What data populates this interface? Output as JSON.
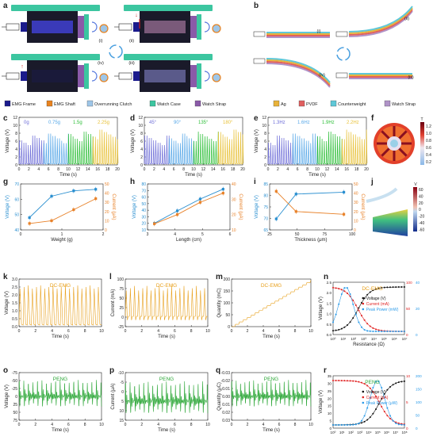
{
  "panel_labels": {
    "a": "a",
    "b": "b",
    "c": "c",
    "d": "d",
    "e": "e",
    "f": "f",
    "g": "g",
    "h": "h",
    "i": "i",
    "j": "j",
    "k": "k",
    "l": "l",
    "m": "m",
    "n": "n",
    "o": "o",
    "p": "p",
    "q": "q",
    "r": "r"
  },
  "state_labels_a": [
    "(i)",
    "(ii)",
    "(iii)",
    "(iv)"
  ],
  "state_labels_b": [
    "(i)",
    "(ii)",
    "(iii)",
    "(iv)"
  ],
  "legend_a": [
    {
      "label": "EMG Frame",
      "color": "#1a1a8c"
    },
    {
      "label": "EMG Shaft",
      "color": "#e8821e"
    },
    {
      "label": "Overrunning Clutch",
      "color": "#9ec6e8"
    },
    {
      "label": "Watch Case",
      "color": "#3cc6a0"
    },
    {
      "label": "Watch Strap",
      "color": "#8a5aa8"
    }
  ],
  "legend_b": [
    {
      "label": "Ag",
      "color": "#e8b23a"
    },
    {
      "label": "PVDF",
      "color": "#e06060"
    },
    {
      "label": "Counterweight",
      "color": "#5fc8d8"
    },
    {
      "label": "Watch Strap",
      "color": "#b093c8"
    }
  ],
  "colorbar_f": {
    "unit": "T",
    "ticks": [
      "1.2",
      "1.0",
      "0.8",
      "0.6",
      "0.4",
      "0.2"
    ]
  },
  "colorbar_j": {
    "unit": "V",
    "ticks": [
      "60",
      "40",
      "20",
      "0",
      "-20",
      "-40",
      "-60"
    ]
  },
  "chart_data": [
    {
      "id": "c",
      "type": "line",
      "ylabel": "Voltage (V)",
      "xlabel": "Time (s)",
      "xlim": [
        0,
        20
      ],
      "ylim": [
        0,
        12
      ],
      "xticks": [
        "0",
        "2",
        "4",
        "6",
        "8",
        "10",
        "12",
        "14",
        "16",
        "18",
        "20"
      ],
      "yticks": [
        "0",
        "2",
        "4",
        "6",
        "8",
        "10",
        "12"
      ],
      "series": [
        {
          "name": "0g",
          "color": "#6f6fd8"
        },
        {
          "name": "0.75g",
          "color": "#58a8e8"
        },
        {
          "name": "1.5g",
          "color": "#2fbf3a"
        },
        {
          "name": "2.25g",
          "color": "#e8c23a"
        }
      ]
    },
    {
      "id": "d",
      "type": "line",
      "ylabel": "Voltage (V)",
      "xlabel": "Time (s)",
      "xlim": [
        0,
        20
      ],
      "ylim": [
        0,
        12
      ],
      "xticks": [
        "0",
        "2",
        "4",
        "6",
        "8",
        "10",
        "12",
        "14",
        "16",
        "18",
        "20"
      ],
      "yticks": [
        "0",
        "2",
        "4",
        "6",
        "8",
        "10",
        "12"
      ],
      "series": [
        {
          "name": "45°",
          "color": "#6f6fd8"
        },
        {
          "name": "90°",
          "color": "#58a8e8"
        },
        {
          "name": "135°",
          "color": "#2fbf3a"
        },
        {
          "name": "180°",
          "color": "#e8c23a"
        }
      ]
    },
    {
      "id": "e",
      "type": "line",
      "ylabel": "Voltage (V)",
      "xlabel": "Time (s)",
      "xlim": [
        0,
        20
      ],
      "ylim": [
        0,
        12
      ],
      "xticks": [
        "0",
        "2",
        "4",
        "6",
        "8",
        "10",
        "12",
        "14",
        "16",
        "18",
        "20"
      ],
      "yticks": [
        "0",
        "2",
        "4",
        "6",
        "8",
        "10",
        "12"
      ],
      "series": [
        {
          "name": "1.3Hz",
          "color": "#6f6fd8"
        },
        {
          "name": "1.6Hz",
          "color": "#58a8e8"
        },
        {
          "name": "1.9Hz",
          "color": "#2fbf3a"
        },
        {
          "name": "2.2Hz",
          "color": "#e8c23a"
        }
      ]
    },
    {
      "id": "g",
      "type": "line",
      "xlabel": "Weight (g)",
      "ylabel": "Voltage (V)",
      "ylabel2": "Current (μA)",
      "xlim": [
        -0.3,
        2.5
      ],
      "ylim": [
        40,
        70
      ],
      "ylim2": [
        0,
        50
      ],
      "xticks": [
        "0",
        "1",
        "2"
      ],
      "yticks": [
        "40",
        "50",
        "60",
        "70"
      ],
      "yticks2": [
        "0",
        "10",
        "20",
        "30",
        "40",
        "50"
      ],
      "series": [
        {
          "axis": "left",
          "color": "#2a8fd0",
          "x": [
            0,
            0.75,
            1.5,
            2.25
          ],
          "y": [
            48,
            62,
            65.5,
            66.5
          ]
        },
        {
          "axis": "right",
          "color": "#e8822a",
          "x": [
            0,
            0.75,
            1.5,
            2.25
          ],
          "y": [
            7,
            10,
            22,
            34
          ]
        }
      ]
    },
    {
      "id": "h",
      "type": "line",
      "xlabel": "Length (cm)",
      "ylabel": "Voltage (V)",
      "ylabel2": "Current (μA)",
      "xlim": [
        2.7,
        6.3
      ],
      "ylim": [
        10,
        80
      ],
      "ylim2": [
        10,
        40
      ],
      "xticks": [
        "3",
        "4",
        "5",
        "6"
      ],
      "yticks": [
        "10",
        "20",
        "30",
        "40",
        "50",
        "60",
        "70",
        "80"
      ],
      "yticks2": [
        "10",
        "20",
        "30",
        "40"
      ],
      "series": [
        {
          "axis": "left",
          "color": "#2a8fd0",
          "x": [
            3,
            4,
            5,
            6
          ],
          "y": [
            20,
            39,
            57,
            72
          ]
        },
        {
          "axis": "right",
          "color": "#e8822a",
          "x": [
            3,
            4,
            5,
            6
          ],
          "y": [
            14,
            20,
            28,
            34
          ]
        }
      ]
    },
    {
      "id": "i",
      "type": "line",
      "xlabel": "Thickness (μm)",
      "ylabel": "Voltage (V)",
      "ylabel2": "Current (μA)",
      "xlim": [
        20,
        120
      ],
      "ylim": [
        60,
        85
      ],
      "ylim2": [
        0,
        50
      ],
      "xticks": [
        "25",
        "50",
        "75",
        "100"
      ],
      "yticks": [
        "65",
        "70",
        "75",
        "80",
        "85"
      ],
      "yticks2": [
        "0",
        "10",
        "20",
        "30",
        "40",
        "50"
      ],
      "series": [
        {
          "axis": "left",
          "color": "#2a8fd0",
          "x": [
            28,
            52,
            110
          ],
          "y": [
            66,
            79.5,
            80.5
          ]
        },
        {
          "axis": "right",
          "color": "#e8822a",
          "x": [
            28,
            52,
            110
          ],
          "y": [
            42,
            20,
            17
          ]
        }
      ]
    },
    {
      "id": "k",
      "type": "line",
      "title": "DC-EMG",
      "xlabel": "Time (s)",
      "ylabel": "Voltage (V)",
      "xlim": [
        0,
        10
      ],
      "ylim": [
        0,
        3
      ],
      "xticks": [
        "0",
        "2",
        "4",
        "6",
        "8",
        "10"
      ],
      "yticks": [
        "0.0",
        "0.5",
        "1.0",
        "1.5",
        "2.0",
        "2.5",
        "3.0"
      ],
      "series": [
        {
          "color": "#e8a11e"
        }
      ]
    },
    {
      "id": "l",
      "type": "line",
      "title": "DC-EMG",
      "xlabel": "Time (s)",
      "ylabel": "Current (mA)",
      "xlim": [
        0,
        10
      ],
      "ylim": [
        -25,
        100
      ],
      "xticks": [
        "0",
        "2",
        "4",
        "6",
        "8",
        "10"
      ],
      "yticks": [
        "-25",
        "0",
        "25",
        "50",
        "75",
        "100"
      ],
      "series": [
        {
          "color": "#e8a11e"
        }
      ]
    },
    {
      "id": "m",
      "type": "line",
      "title": "DC-EMG",
      "xlabel": "Time (s)",
      "ylabel": "Quantity (mC)",
      "xlim": [
        0,
        10
      ],
      "ylim": [
        0,
        210
      ],
      "xticks": [
        "0",
        "2",
        "4",
        "6",
        "8",
        "10"
      ],
      "yticks": [
        "0",
        "50",
        "100",
        "150",
        "200"
      ],
      "series": [
        {
          "color": "#e8a11e",
          "x": [
            0,
            10
          ],
          "y": [
            0,
            205
          ]
        }
      ]
    },
    {
      "id": "n",
      "type": "line",
      "title": "DC-EMG",
      "xlabel": "Resistance (Ω)",
      "ylabel": "Voltage (V)",
      "ylabel2": "Current (mA)",
      "ylabel3": "Peak Power (mW)",
      "xticks": [
        "10⁰",
        "10¹",
        "10²",
        "10³",
        "10⁴",
        "10⁵",
        "10⁶",
        "10⁷"
      ],
      "yticks": [
        "0.0",
        "0.5",
        "1.0",
        "1.5",
        "2.0",
        "2.5"
      ],
      "yticks2": [
        "0",
        "50",
        "100"
      ],
      "yticks3": [
        "0",
        "20",
        "40"
      ],
      "series": [
        {
          "name": "Voltage (V)",
          "color": "#111111"
        },
        {
          "name": "Current (mA)",
          "color": "#e02020"
        },
        {
          "name": "Peak Power (mW)",
          "color": "#2a9ae8"
        }
      ]
    },
    {
      "id": "o",
      "type": "line",
      "title": "PENG",
      "xlabel": "Time (s)",
      "ylabel": "Voltage (V)",
      "xlim": [
        0,
        10
      ],
      "ylim": [
        -75,
        75
      ],
      "xticks": [
        "0",
        "2",
        "4",
        "6",
        "8",
        "10"
      ],
      "yticks": [
        "75",
        "50",
        "25",
        "0",
        "-25",
        "-50",
        "-75"
      ],
      "series": [
        {
          "color": "#2fa83a"
        }
      ]
    },
    {
      "id": "p",
      "type": "line",
      "title": "PENG",
      "xlabel": "Time (s)",
      "ylabel": "Current (μA)",
      "xlim": [
        0,
        10
      ],
      "ylim": [
        -10,
        15
      ],
      "xticks": [
        "0",
        "2",
        "4",
        "6",
        "8",
        "10"
      ],
      "yticks": [
        "15",
        "10",
        "5",
        "0",
        "-5",
        "-10"
      ],
      "series": [
        {
          "color": "#2fa83a"
        }
      ]
    },
    {
      "id": "q",
      "type": "line",
      "title": "PENG",
      "xlabel": "Time (s)",
      "ylabel": "Quantity (μC)",
      "xlim": [
        0,
        10
      ],
      "ylim": [
        -0.03,
        0.03
      ],
      "xticks": [
        "0",
        "2",
        "4",
        "6",
        "8",
        "10"
      ],
      "yticks": [
        "0.03",
        "0.02",
        "0.01",
        "0.00",
        "-0.01",
        "-0.02",
        "-0.03"
      ],
      "series": [
        {
          "color": "#2fa83a"
        }
      ]
    },
    {
      "id": "r",
      "type": "line",
      "title": "PENG",
      "xlabel": "Resistance (Ω)",
      "ylabel": "Voltage (V)",
      "ylabel2": "Current (μA)",
      "ylabel3": "Peak Power (μW)",
      "xticks": [
        "10⁰",
        "10¹",
        "10²",
        "10³",
        "10⁴",
        "10⁵",
        "10⁶",
        "10⁷",
        "10⁸"
      ],
      "yticks": [
        "0",
        "5",
        "10",
        "15",
        "20",
        "25",
        "30",
        "35"
      ],
      "yticks2": [
        "0",
        "5",
        "10"
      ],
      "yticks3": [
        "0",
        "50",
        "100",
        "150",
        "200"
      ],
      "series": [
        {
          "name": "Voltage (V)",
          "color": "#111111"
        },
        {
          "name": "Current (μA)",
          "color": "#e02020"
        },
        {
          "name": "Peak Power (μW)",
          "color": "#2a9ae8"
        }
      ]
    }
  ]
}
